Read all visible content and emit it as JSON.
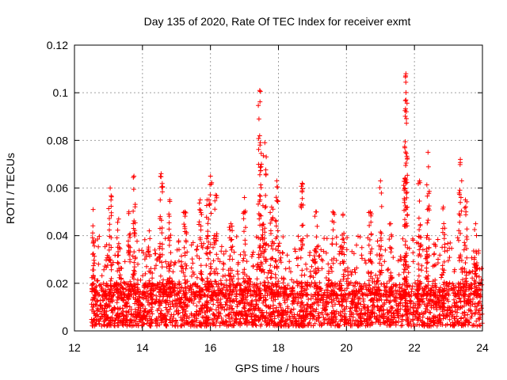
{
  "chart_data": {
    "type": "scatter",
    "title": "Day 135 of 2020, Rate Of TEC Index for receiver exmt",
    "xlabel": "GPS time / hours",
    "ylabel": "ROTI / TECUs",
    "xlim": [
      12,
      24
    ],
    "ylim": [
      0,
      0.12
    ],
    "x_ticks": [
      12,
      14,
      16,
      18,
      20,
      22,
      24
    ],
    "x_tick_labels": [
      "12",
      "14",
      "16",
      "18",
      "20",
      "22",
      "24"
    ],
    "y_ticks": [
      0,
      0.02,
      0.04,
      0.06,
      0.08,
      0.1,
      0.12
    ],
    "y_tick_labels": [
      "0",
      "0.02",
      "0.04",
      "0.06",
      "0.08",
      "0.1",
      "0.12"
    ],
    "grid": true,
    "marker": "plus",
    "series_color": "#ff0000",
    "data_range_x": [
      12.5,
      24.0
    ],
    "baseline_band": [
      0.005,
      0.02
    ],
    "peaks": [
      {
        "x": 12.55,
        "y": 0.051
      },
      {
        "x": 13.05,
        "y": 0.06
      },
      {
        "x": 13.3,
        "y": 0.047
      },
      {
        "x": 13.6,
        "y": 0.05
      },
      {
        "x": 13.75,
        "y": 0.065
      },
      {
        "x": 14.2,
        "y": 0.042
      },
      {
        "x": 14.55,
        "y": 0.066
      },
      {
        "x": 14.8,
        "y": 0.055
      },
      {
        "x": 15.25,
        "y": 0.05
      },
      {
        "x": 15.7,
        "y": 0.055
      },
      {
        "x": 15.9,
        "y": 0.055
      },
      {
        "x": 16.0,
        "y": 0.065
      },
      {
        "x": 16.15,
        "y": 0.057
      },
      {
        "x": 16.6,
        "y": 0.045
      },
      {
        "x": 17.0,
        "y": 0.056
      },
      {
        "x": 17.45,
        "y": 0.101
      },
      {
        "x": 17.5,
        "y": 0.07
      },
      {
        "x": 17.6,
        "y": 0.079
      },
      {
        "x": 17.8,
        "y": 0.052
      },
      {
        "x": 17.95,
        "y": 0.063
      },
      {
        "x": 18.7,
        "y": 0.062
      },
      {
        "x": 19.1,
        "y": 0.05
      },
      {
        "x": 19.6,
        "y": 0.05
      },
      {
        "x": 19.9,
        "y": 0.049
      },
      {
        "x": 20.7,
        "y": 0.05
      },
      {
        "x": 21.0,
        "y": 0.063
      },
      {
        "x": 21.3,
        "y": 0.045
      },
      {
        "x": 21.75,
        "y": 0.108
      },
      {
        "x": 21.75,
        "y": 0.097
      },
      {
        "x": 21.72,
        "y": 0.064
      },
      {
        "x": 22.15,
        "y": 0.063
      },
      {
        "x": 22.4,
        "y": 0.075
      },
      {
        "x": 22.85,
        "y": 0.052
      },
      {
        "x": 23.35,
        "y": 0.072
      },
      {
        "x": 23.5,
        "y": 0.055
      },
      {
        "x": 23.8,
        "y": 0.045
      }
    ]
  }
}
